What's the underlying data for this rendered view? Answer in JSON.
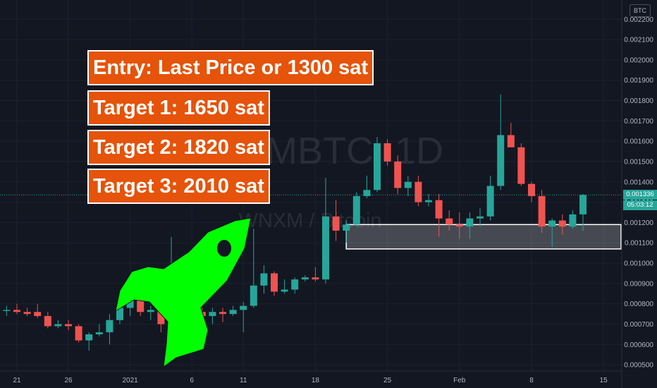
{
  "header": {
    "currency_button": "BTC"
  },
  "watermark": {
    "symbol": "WNXMBTC, 1D",
    "name": "WNXM / Bitcoin"
  },
  "callouts": [
    {
      "text": "Entry: Last Price or 1300 sat"
    },
    {
      "text": "Target 1: 1650 sat"
    },
    {
      "text": "Target 2: 1820 sat"
    },
    {
      "text": "Target 3: 2010 sat"
    }
  ],
  "price_axis": {
    "ticks": [
      "0.002200",
      "0.002100",
      "0.002000",
      "0.001900",
      "0.001800",
      "0.001700",
      "0.001600",
      "0.001500",
      "0.001400",
      "0.001300",
      "0.001200",
      "0.001100",
      "0.001000",
      "0.000900",
      "0.000800",
      "0.000700",
      "0.000600",
      "0.000500"
    ],
    "last_price": "0.001336",
    "countdown": "05:03:12"
  },
  "time_axis": {
    "labels": [
      {
        "text": "21",
        "day": -12
      },
      {
        "text": "26",
        "day": -7
      },
      {
        "text": "2021",
        "day": -1
      },
      {
        "text": "6",
        "day": 5
      },
      {
        "text": "11",
        "day": 10
      },
      {
        "text": "18",
        "day": 17
      },
      {
        "text": "25",
        "day": 24
      },
      {
        "text": "Feb",
        "day": 31
      },
      {
        "text": "8",
        "day": 38
      },
      {
        "text": "15",
        "day": 45
      }
    ]
  },
  "colors": {
    "up": "#26a69a",
    "down": "#ef5350",
    "callout": "#e6530a",
    "rocket": "#00ff00",
    "box": "#ffffff"
  },
  "chart_data": {
    "type": "candlestick",
    "title": "",
    "ylim": [
      0.00049,
      0.00226
    ],
    "support_zone": {
      "top": 0.00119,
      "bottom": 0.00107,
      "from_day": 20,
      "to_day": 49
    },
    "candles": [
      {
        "day": -13,
        "o": 0.000765,
        "h": 0.00079,
        "l": 0.00074,
        "c": 0.00077
      },
      {
        "day": -12,
        "o": 0.00077,
        "h": 0.0008,
        "l": 0.00075,
        "c": 0.00076
      },
      {
        "day": -11,
        "o": 0.00076,
        "h": 0.00078,
        "l": 0.00074,
        "c": 0.00075
      },
      {
        "day": -10,
        "o": 0.00076,
        "h": 0.0008,
        "l": 0.00073,
        "c": 0.00074
      },
      {
        "day": -9,
        "o": 0.00074,
        "h": 0.00076,
        "l": 0.00068,
        "c": 0.00069
      },
      {
        "day": -8,
        "o": 0.00069,
        "h": 0.00072,
        "l": 0.00068,
        "c": 0.0007
      },
      {
        "day": -7,
        "o": 0.0007,
        "h": 0.00072,
        "l": 0.00067,
        "c": 0.00069
      },
      {
        "day": -6,
        "o": 0.00069,
        "h": 0.0007,
        "l": 0.00061,
        "c": 0.00062
      },
      {
        "day": -5,
        "o": 0.00062,
        "h": 0.00066,
        "l": 0.00057,
        "c": 0.00065
      },
      {
        "day": -4,
        "o": 0.00065,
        "h": 0.0007,
        "l": 0.00064,
        "c": 0.00066
      },
      {
        "day": -3,
        "o": 0.00066,
        "h": 0.00075,
        "l": 0.0006,
        "c": 0.00072
      },
      {
        "day": -2,
        "o": 0.00072,
        "h": 0.00086,
        "l": 0.0007,
        "c": 0.00078
      },
      {
        "day": -1,
        "o": 0.00078,
        "h": 0.00085,
        "l": 0.00074,
        "c": 0.00082
      },
      {
        "day": 0,
        "o": 0.00082,
        "h": 0.00086,
        "l": 0.00074,
        "c": 0.00076
      },
      {
        "day": 1,
        "o": 0.00076,
        "h": 0.00079,
        "l": 0.00072,
        "c": 0.00077
      },
      {
        "day": 2,
        "o": 0.00077,
        "h": 0.00079,
        "l": 0.00066,
        "c": 0.0007
      },
      {
        "day": 3,
        "o": 0.0007,
        "h": 0.00113,
        "l": 0.00066,
        "c": 0.00073
      },
      {
        "day": 4,
        "o": 0.00073,
        "h": 0.0008,
        "l": 0.00069,
        "c": 0.00071
      },
      {
        "day": 5,
        "o": 0.00071,
        "h": 0.00078,
        "l": 0.0007,
        "c": 0.00076
      },
      {
        "day": 6,
        "o": 0.00076,
        "h": 0.00078,
        "l": 0.0007,
        "c": 0.00074
      },
      {
        "day": 7,
        "o": 0.00074,
        "h": 0.00078,
        "l": 0.0007,
        "c": 0.00076
      },
      {
        "day": 8,
        "o": 0.00076,
        "h": 0.00078,
        "l": 0.00071,
        "c": 0.00075
      },
      {
        "day": 9,
        "o": 0.00075,
        "h": 0.00079,
        "l": 0.00074,
        "c": 0.00077
      },
      {
        "day": 10,
        "o": 0.00077,
        "h": 0.00081,
        "l": 0.00066,
        "c": 0.00079
      },
      {
        "day": 11,
        "o": 0.00079,
        "h": 0.00117,
        "l": 0.00078,
        "c": 0.00089
      },
      {
        "day": 12,
        "o": 0.00089,
        "h": 0.00099,
        "l": 0.00085,
        "c": 0.00095
      },
      {
        "day": 13,
        "o": 0.00095,
        "h": 0.00096,
        "l": 0.00084,
        "c": 0.00086
      },
      {
        "day": 14,
        "o": 0.00086,
        "h": 0.00092,
        "l": 0.00085,
        "c": 0.00087
      },
      {
        "day": 15,
        "o": 0.00087,
        "h": 0.00093,
        "l": 0.00085,
        "c": 0.00092
      },
      {
        "day": 16,
        "o": 0.00092,
        "h": 0.00094,
        "l": 0.00091,
        "c": 0.00093
      },
      {
        "day": 17,
        "o": 0.00093,
        "h": 0.00098,
        "l": 0.00091,
        "c": 0.00092
      },
      {
        "day": 18,
        "o": 0.00092,
        "h": 0.00142,
        "l": 0.0009,
        "c": 0.00123
      },
      {
        "day": 19,
        "o": 0.00123,
        "h": 0.00131,
        "l": 0.00111,
        "c": 0.00116
      },
      {
        "day": 20,
        "o": 0.00116,
        "h": 0.00121,
        "l": 0.0011,
        "c": 0.00119
      },
      {
        "day": 21,
        "o": 0.00119,
        "h": 0.00135,
        "l": 0.00118,
        "c": 0.00133
      },
      {
        "day": 22,
        "o": 0.00133,
        "h": 0.00143,
        "l": 0.00132,
        "c": 0.00136
      },
      {
        "day": 23,
        "o": 0.00136,
        "h": 0.00162,
        "l": 0.00135,
        "c": 0.00159
      },
      {
        "day": 24,
        "o": 0.00159,
        "h": 0.00161,
        "l": 0.00148,
        "c": 0.0015
      },
      {
        "day": 25,
        "o": 0.0015,
        "h": 0.00153,
        "l": 0.00134,
        "c": 0.00137
      },
      {
        "day": 26,
        "o": 0.00137,
        "h": 0.00143,
        "l": 0.00133,
        "c": 0.0014
      },
      {
        "day": 27,
        "o": 0.0014,
        "h": 0.00143,
        "l": 0.00128,
        "c": 0.0013
      },
      {
        "day": 28,
        "o": 0.0013,
        "h": 0.00134,
        "l": 0.00128,
        "c": 0.00131
      },
      {
        "day": 29,
        "o": 0.00131,
        "h": 0.00134,
        "l": 0.00113,
        "c": 0.00122
      },
      {
        "day": 30,
        "o": 0.00122,
        "h": 0.00126,
        "l": 0.00116,
        "c": 0.00119
      },
      {
        "day": 31,
        "o": 0.00119,
        "h": 0.00125,
        "l": 0.00112,
        "c": 0.00118
      },
      {
        "day": 32,
        "o": 0.00118,
        "h": 0.00125,
        "l": 0.00112,
        "c": 0.00122
      },
      {
        "day": 33,
        "o": 0.00122,
        "h": 0.00127,
        "l": 0.00118,
        "c": 0.00123
      },
      {
        "day": 34,
        "o": 0.00123,
        "h": 0.00143,
        "l": 0.00121,
        "c": 0.00138
      },
      {
        "day": 35,
        "o": 0.00138,
        "h": 0.00183,
        "l": 0.00136,
        "c": 0.00163
      },
      {
        "day": 36,
        "o": 0.00163,
        "h": 0.00169,
        "l": 0.00157,
        "c": 0.00157
      },
      {
        "day": 37,
        "o": 0.00157,
        "h": 0.00159,
        "l": 0.00138,
        "c": 0.00139
      },
      {
        "day": 38,
        "o": 0.00139,
        "h": 0.0014,
        "l": 0.0013,
        "c": 0.00133
      },
      {
        "day": 39,
        "o": 0.00133,
        "h": 0.00136,
        "l": 0.00115,
        "c": 0.00118
      },
      {
        "day": 40,
        "o": 0.00118,
        "h": 0.00122,
        "l": 0.00108,
        "c": 0.00121
      },
      {
        "day": 41,
        "o": 0.00121,
        "h": 0.00124,
        "l": 0.00114,
        "c": 0.00118
      },
      {
        "day": 42,
        "o": 0.00118,
        "h": 0.00126,
        "l": 0.00117,
        "c": 0.00124
      },
      {
        "day": 43,
        "o": 0.00124,
        "h": 0.00134,
        "l": 0.00116,
        "c": 0.001336
      }
    ]
  }
}
